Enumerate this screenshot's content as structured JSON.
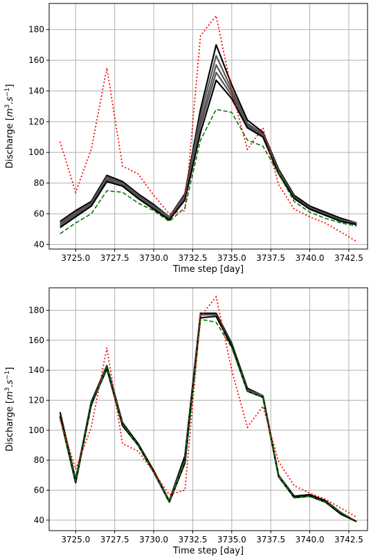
{
  "chart_data": [
    {
      "type": "line",
      "xlabel": "Time step [day]",
      "ylabel": "Discharge",
      "ylabel_unit_html": "[m3.s-1]",
      "xlim": [
        3723.3,
        3743.7
      ],
      "ylim": [
        37,
        197
      ],
      "xticks": [
        3725.0,
        3727.5,
        3730.0,
        3732.5,
        3735.0,
        3737.5,
        3740.0,
        3742.5
      ],
      "xtick_labels": [
        "3725.0",
        "3727.5",
        "3730.0",
        "3732.5",
        "3735.0",
        "3737.5",
        "3740.0",
        "3742.5"
      ],
      "yticks": [
        40,
        60,
        80,
        100,
        120,
        140,
        160,
        180
      ],
      "ytick_labels": [
        "40",
        "60",
        "80",
        "100",
        "120",
        "140",
        "160",
        "180"
      ],
      "grid": true,
      "x": [
        3724,
        3725,
        3726,
        3727,
        3728,
        3729,
        3730,
        3731,
        3732,
        3733,
        3734,
        3735,
        3736,
        3737,
        3738,
        3739,
        3740,
        3741,
        3742,
        3743
      ],
      "series": [
        {
          "role": "observed",
          "style": "dotted",
          "color": "#ff0000",
          "values": [
            107,
            74,
            102,
            155,
            91,
            86,
            72,
            60,
            62,
            176,
            189,
            140,
            102,
            116,
            79,
            63,
            58,
            54,
            48,
            42
          ]
        },
        {
          "role": "lower",
          "style": "dashed",
          "color": "#007700",
          "values": [
            47,
            54,
            60,
            75,
            74,
            67,
            62,
            55,
            64,
            108,
            128,
            126,
            108,
            104,
            86,
            68,
            61,
            57,
            54,
            52
          ]
        },
        {
          "role": "ensemble",
          "style": "solid",
          "color": "#000000",
          "members": [
            [
              55,
              62,
              68,
              85,
              81,
              73,
              66,
              58,
              73,
              128,
              170,
              144,
              121,
              113,
              89,
              72,
              65,
              61,
              57,
              54
            ],
            [
              54,
              61,
              67,
              84,
              80,
              72,
              65,
              58,
              72,
              124,
              163,
              141,
              119,
              112,
              88,
              71,
              64,
              60,
              56,
              54
            ],
            [
              53,
              60,
              66,
              83,
              79,
              71,
              64,
              57,
              71,
              120,
              157,
              139,
              118,
              111,
              87,
              71,
              64,
              60,
              56,
              53
            ],
            [
              52,
              59,
              66,
              82,
              79,
              71,
              64,
              57,
              70,
              117,
              152,
              137,
              117,
              110,
              87,
              70,
              63,
              59,
              56,
              53
            ],
            [
              51,
              58,
              65,
              81,
              78,
              70,
              63,
              56,
              69,
              113,
              147,
              135,
              116,
              110,
              86,
              70,
              63,
              59,
              55,
              53
            ]
          ]
        }
      ]
    },
    {
      "type": "line",
      "xlabel": "Time step [day]",
      "ylabel": "Discharge",
      "ylabel_unit_html": "[m3.s-1]",
      "xlim": [
        3723.3,
        3743.7
      ],
      "ylim": [
        33,
        195
      ],
      "xticks": [
        3725.0,
        3727.5,
        3730.0,
        3732.5,
        3735.0,
        3737.5,
        3740.0,
        3742.5
      ],
      "xtick_labels": [
        "3725.0",
        "3727.5",
        "3730.0",
        "3732.5",
        "3735.0",
        "3737.5",
        "3740.0",
        "3742.5"
      ],
      "yticks": [
        40,
        60,
        80,
        100,
        120,
        140,
        160,
        180
      ],
      "ytick_labels": [
        "40",
        "60",
        "80",
        "100",
        "120",
        "140",
        "160",
        "180"
      ],
      "grid": true,
      "x": [
        3724,
        3725,
        3726,
        3727,
        3728,
        3729,
        3730,
        3731,
        3732,
        3733,
        3734,
        3735,
        3736,
        3737,
        3738,
        3739,
        3740,
        3741,
        3742,
        3743
      ],
      "series": [
        {
          "role": "observed",
          "style": "dotted",
          "color": "#ff0000",
          "values": [
            107,
            74,
            102,
            155,
            91,
            86,
            72,
            57,
            60,
            176,
            189,
            140,
            102,
            116,
            79,
            63,
            58,
            54,
            48,
            42
          ]
        },
        {
          "role": "lower",
          "style": "dashed",
          "color": "#007700",
          "values": [
            108,
            66,
            116,
            142,
            104,
            90,
            72,
            52,
            79,
            174,
            172,
            155,
            126,
            122,
            69,
            55,
            56,
            52,
            45,
            39
          ]
        },
        {
          "role": "ensemble",
          "style": "solid",
          "color": "#000000",
          "members": [
            [
              112,
              67,
              119,
              143,
              105,
              91,
              73,
              53,
              83,
              178,
              178,
              158,
              128,
              123,
              70,
              56,
              57,
              53,
              45,
              39
            ],
            [
              110,
              66,
              118,
              142,
              104,
              90,
              72,
              53,
              80,
              177,
              177,
              157,
              127,
              123,
              70,
              55,
              56,
              52,
              45,
              39
            ],
            [
              109,
              65,
              117,
              141,
              103,
              90,
              72,
              52,
              78,
              175,
              176,
              156,
              126,
              122,
              69,
              55,
              56,
              52,
              44,
              39
            ]
          ]
        }
      ]
    }
  ]
}
